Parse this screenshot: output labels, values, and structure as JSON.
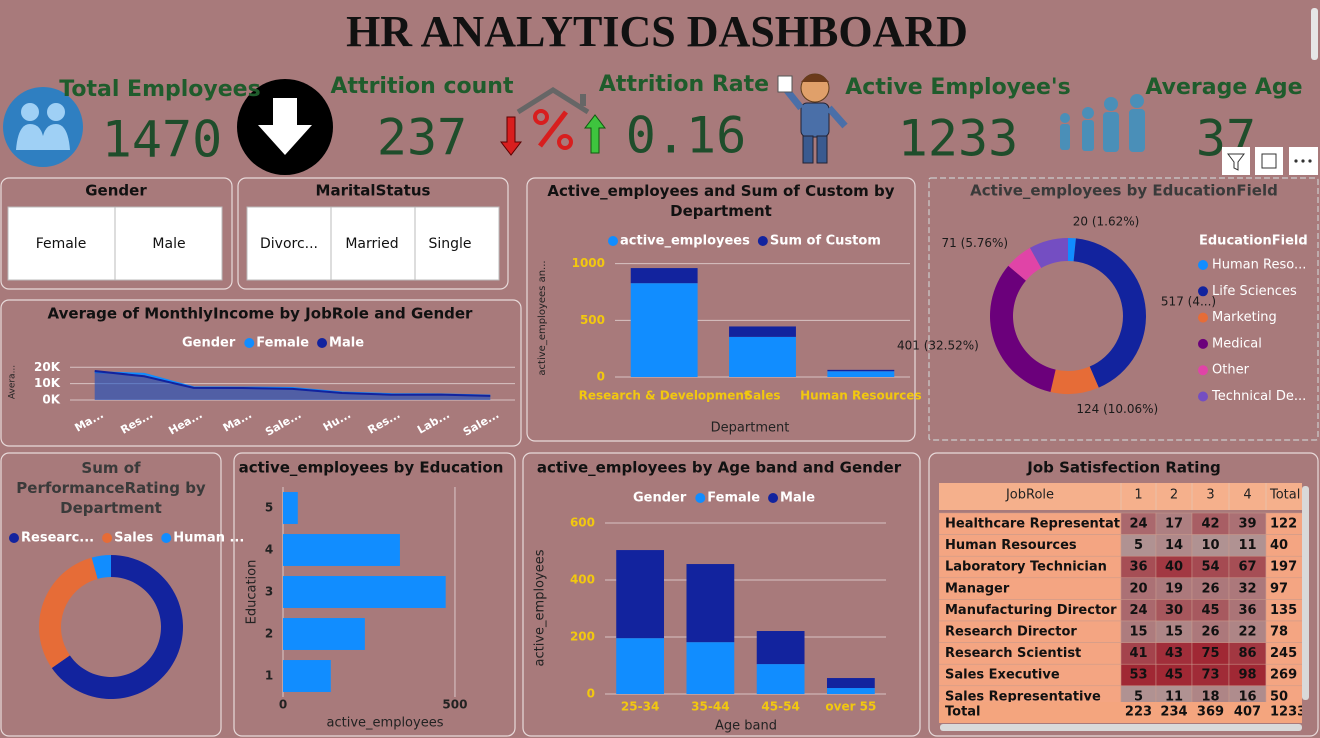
{
  "header": {
    "title": "HR ANALYTICS DASHBOARD"
  },
  "kpis": [
    {
      "label": "Total Employees",
      "value": 1470
    },
    {
      "label": "Attrition count",
      "value": 237
    },
    {
      "label": "Attrition Rate",
      "value": 0.16
    },
    {
      "label": "Active Employee's",
      "value": 1233
    },
    {
      "label": "Average Age",
      "value": 37
    }
  ],
  "slicers": {
    "gender": {
      "title": "Gender",
      "items": [
        "Female",
        "Male"
      ]
    },
    "marital_status": {
      "title": "MaritalStatus",
      "items": [
        "Divorc...",
        "Married",
        "Single"
      ]
    }
  },
  "chart_data": [
    {
      "type": "area",
      "title": "Average of MonthlyIncome by JobRole and Gender",
      "ylabel": "Avera...",
      "legend_title": "Gender",
      "categories": [
        "Ma...",
        "Res...",
        "Hea...",
        "Ma...",
        "Sale...",
        "Hu...",
        "Res...",
        "Lab...",
        "Sale..."
      ],
      "series": [
        {
          "name": "Female",
          "color": "#118dff",
          "values": [
            17000,
            16000,
            7700,
            7600,
            7300,
            4600,
            3600,
            3400,
            2700
          ]
        },
        {
          "name": "Male",
          "color": "#12239e",
          "values": [
            17700,
            14500,
            7400,
            7300,
            6800,
            4300,
            3200,
            3300,
            2500
          ]
        }
      ],
      "ylim": [
        0,
        22000
      ],
      "yticks": [
        {
          "value": 0,
          "label": "0K"
        },
        {
          "value": 10000,
          "label": "10K"
        },
        {
          "value": 20000,
          "label": "20K"
        }
      ],
      "grid": true
    },
    {
      "type": "bar",
      "stacked": true,
      "title": "Active_employees and Sum of Custom by Department",
      "xlabel": "Department",
      "ylabel": "active_employees an...",
      "categories": [
        "Research & Development",
        "Sales",
        "Human Resources"
      ],
      "series": [
        {
          "name": "active_employees",
          "color": "#118dff",
          "values": [
            828,
            354,
            51
          ]
        },
        {
          "name": "Sum of Custom",
          "color": "#12239e",
          "values": [
            133,
            92,
            12
          ]
        }
      ],
      "ylim": [
        0,
        1050
      ],
      "yticks": [
        0,
        500,
        1000
      ],
      "grid": true
    },
    {
      "type": "donut",
      "title": "Active_employees by EducationField",
      "legend_title": "EducationField",
      "categories": [
        "Human Reso...",
        "Life Sciences",
        "Marketing",
        "Medical",
        "Other",
        "Technical De..."
      ],
      "values": [
        20,
        517,
        124,
        401,
        71,
        100
      ],
      "value_labels": [
        "20 (1.62%)",
        "517 (4...)",
        "124 (10.06%)",
        "401 (32.52%)",
        "71 (5.76%)",
        null
      ],
      "colors": [
        "#118dff",
        "#12239e",
        "#e66c37",
        "#6b007b",
        "#e044a7",
        "#744ec2"
      ]
    },
    {
      "type": "donut",
      "title": "Sum of PerformanceRating by Department",
      "categories": [
        "Researc...",
        "Sales",
        "Human ..."
      ],
      "values": [
        3030,
        1405,
        200
      ],
      "colors": [
        "#12239e",
        "#e66c37",
        "#118dff"
      ]
    },
    {
      "type": "bar",
      "orientation": "horizontal",
      "title": "active_employees by Education",
      "xlabel": "active_employees",
      "ylabel": "Education",
      "categories": [
        1,
        2,
        3,
        4,
        5
      ],
      "values": [
        139,
        238,
        473,
        340,
        43
      ],
      "color": "#118dff",
      "xlim": [
        0,
        560
      ],
      "xticks": [
        0,
        500
      ],
      "grid": true
    },
    {
      "type": "bar",
      "stacked": true,
      "title": "active_employees by Age band and Gender",
      "xlabel": "Age band",
      "ylabel": "active_employees",
      "legend_title": "Gender",
      "categories": [
        "25-34",
        "35-44",
        "45-54",
        "over 55"
      ],
      "series": [
        {
          "name": "Female",
          "color": "#118dff",
          "values": [
            196,
            182,
            105,
            21
          ]
        },
        {
          "name": "Male",
          "color": "#12239e",
          "values": [
            309,
            274,
            116,
            35
          ]
        }
      ],
      "ylim": [
        0,
        640
      ],
      "yticks": [
        0,
        200,
        400,
        600
      ],
      "grid": true
    }
  ],
  "table": {
    "title": "Job Satisfection Rating",
    "columns": [
      "JobRole",
      "1",
      "2",
      "3",
      "4",
      "Total"
    ],
    "rows": [
      [
        "Healthcare Representative",
        24,
        17,
        42,
        39,
        122
      ],
      [
        "Human Resources",
        5,
        14,
        10,
        11,
        40
      ],
      [
        "Laboratory Technician",
        36,
        40,
        54,
        67,
        197
      ],
      [
        "Manager",
        20,
        19,
        26,
        32,
        97
      ],
      [
        "Manufacturing Director",
        24,
        30,
        45,
        36,
        135
      ],
      [
        "Research Director",
        15,
        15,
        26,
        22,
        78
      ],
      [
        "Research Scientist",
        41,
        43,
        75,
        86,
        245
      ],
      [
        "Sales Executive",
        53,
        45,
        73,
        98,
        269
      ],
      [
        "Sales Representative",
        5,
        11,
        18,
        16,
        50
      ]
    ],
    "total_row": [
      "Total",
      223,
      234,
      369,
      407,
      1233
    ]
  }
}
